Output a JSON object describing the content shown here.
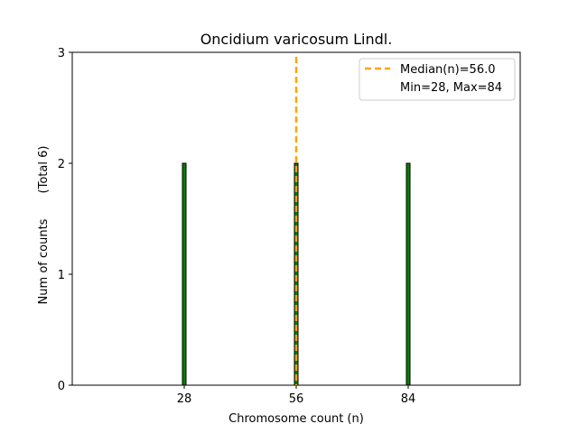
{
  "chart_data": {
    "type": "bar",
    "title": "Oncidium varicosum Lindl.",
    "xlabel": "Chromosome count (n)",
    "ylabel": "Num of counts",
    "ylabel_total": "(Total 6)",
    "x_ticks": [
      28,
      56,
      84
    ],
    "y_ticks": [
      0,
      1,
      2,
      3
    ],
    "xlim": [
      0,
      112
    ],
    "ylim": [
      0,
      3
    ],
    "bars": [
      {
        "x": 28,
        "value": 2
      },
      {
        "x": 56,
        "value": 2
      },
      {
        "x": 84,
        "value": 2
      }
    ],
    "median": 56.0,
    "legend": {
      "position": "top-right",
      "median_label": "Median(n)=56.0",
      "range_label": "Min=28, Max=84"
    },
    "colors": {
      "bar_fill": "#008000",
      "bar_edge": "#000000",
      "median_line": "#FFA500"
    }
  }
}
